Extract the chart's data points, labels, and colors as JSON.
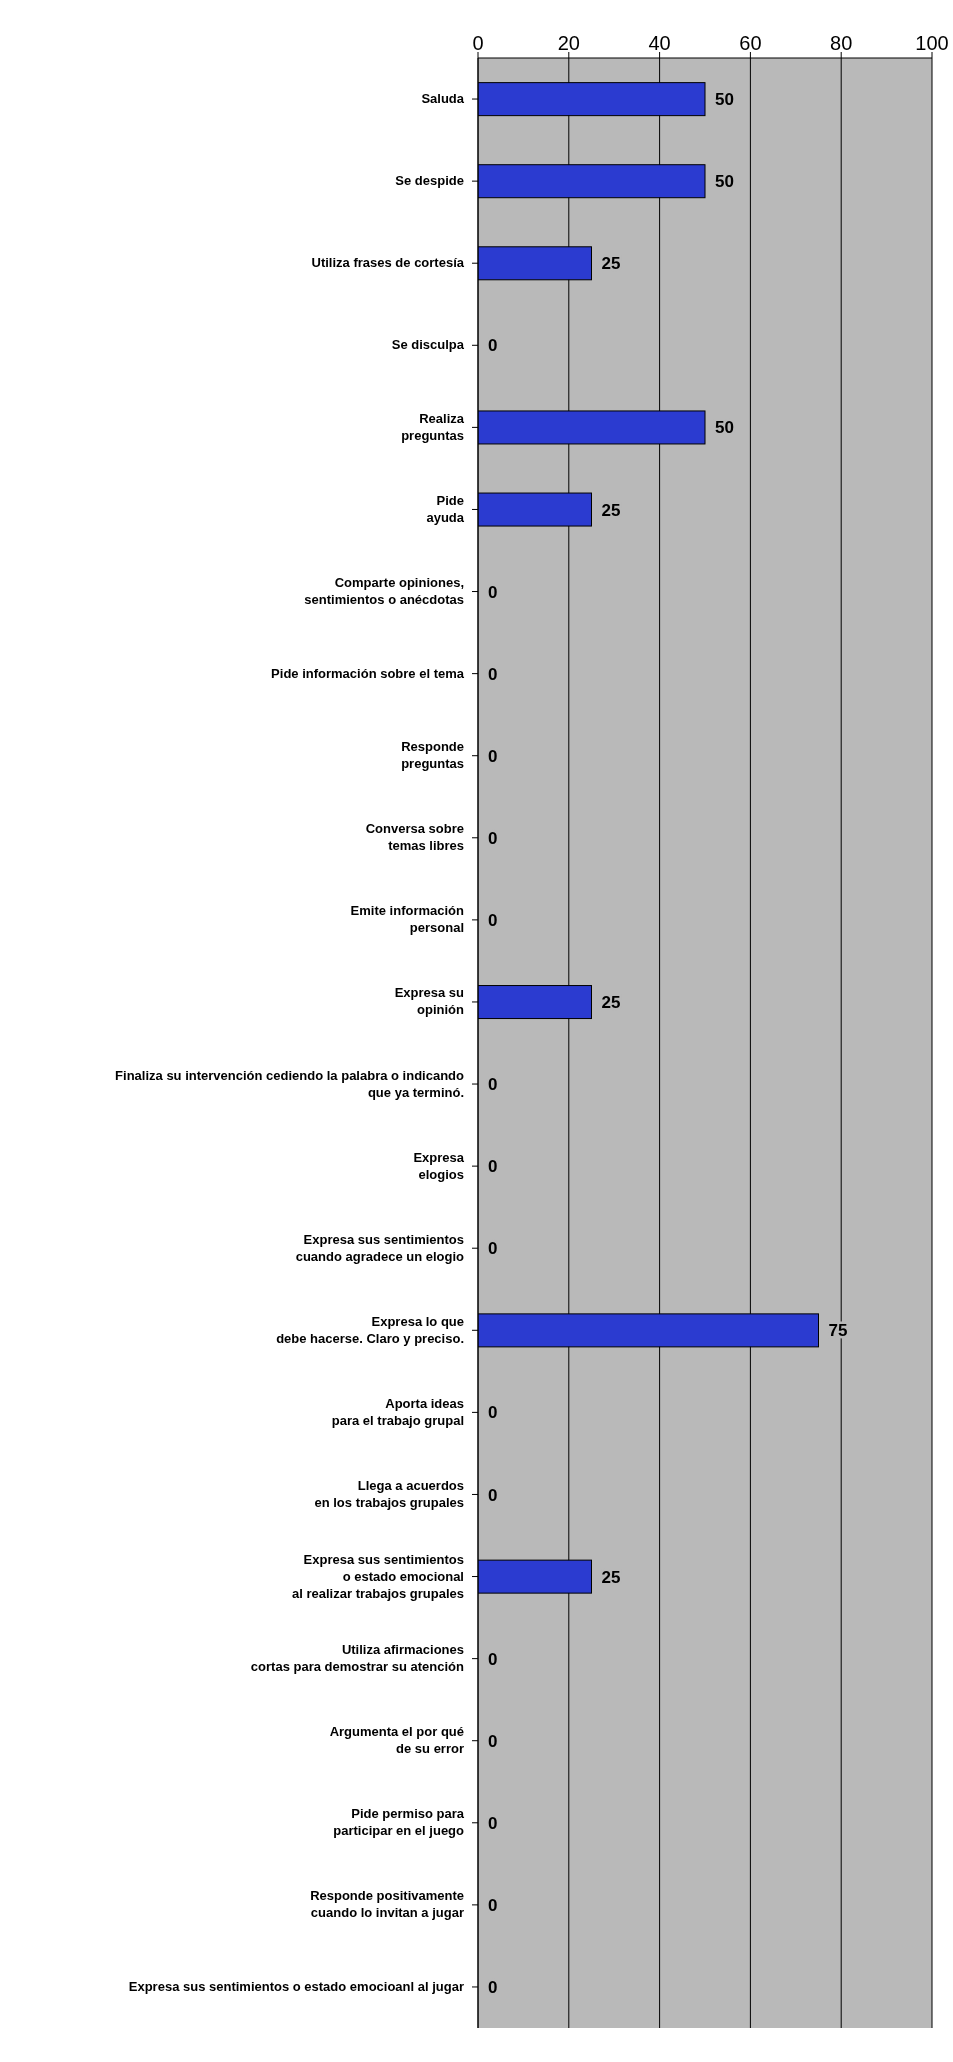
{
  "chart_data": {
    "type": "bar",
    "orientation": "horizontal",
    "categories": [
      "Saluda",
      "Se despide",
      "Utiliza frases de cortesía",
      "Se disculpa",
      "Realiza\npreguntas",
      "Pide\nayuda",
      "Comparte opiniones,\nsentimientos o anécdotas",
      "Pide información sobre el tema",
      "Responde\npreguntas",
      "Conversa sobre\ntemas libres",
      "Emite información\npersonal",
      "Expresa su\nopinión",
      "Finaliza su intervención cediendo la palabra o indicando\nque ya terminó.",
      "Expresa\nelogios",
      "Expresa sus sentimientos\ncuando agradece un elogio",
      "Expresa lo que\ndebe hacerse. Claro y preciso.",
      "Aporta ideas\npara el trabajo grupal",
      "Llega a acuerdos\nen los trabajos grupales",
      "Expresa sus sentimientos\no estado emocional\nal realizar trabajos grupales",
      "Utiliza afirmaciones\ncortas para demostrar su atención",
      "Argumenta el por qué\nde su error",
      "Pide permiso para\nparticipar en el juego",
      "Responde positivamente\ncuando lo invitan a jugar",
      "Expresa sus sentimientos o estado emocioanl al jugar"
    ],
    "values": [
      50,
      50,
      25,
      0,
      50,
      25,
      0,
      0,
      0,
      0,
      0,
      25,
      0,
      0,
      0,
      75,
      0,
      0,
      25,
      0,
      0,
      0,
      0,
      0
    ],
    "color": "#2b3bd0",
    "xlim": [
      0,
      100
    ],
    "xticks": [
      0,
      20,
      40,
      60,
      80,
      100
    ],
    "grid": "x",
    "data_labels": true
  }
}
